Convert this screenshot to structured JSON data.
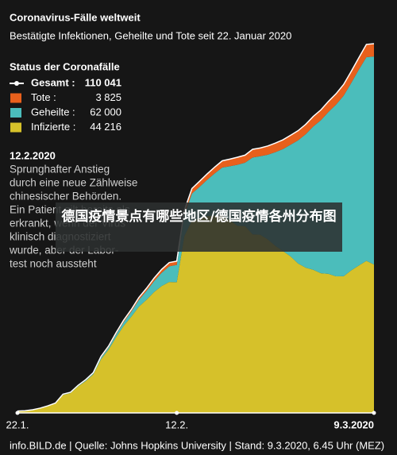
{
  "chart_data": {
    "type": "stacked_area",
    "title": "Coronavirus-Fälle weltweit",
    "subtitle": "Bestätigte Infektionen, Geheilte und Tote seit 22. Januar 2020",
    "legend_title": "Status der Coronafälle",
    "annotation_title": "12.2.2020",
    "annotation_lines": [
      "Sprunghafter Anstieg",
      "durch eine neue Zählweise",
      "chinesischer Behörden.",
      "Ein Patient gilt bereits als",
      "erkrankt, wenn der Virus",
      "klinisch diagnostiziert",
      "wurde, aber der Labor-",
      "test noch aussteht"
    ],
    "overlay": "德国疫情景点有哪些地区/德国疫情各州分布图",
    "footer": "info.BILD.de | Quelle: Johns Hopkins University | Stand: 9.3.2020, 6.45 Uhr (MEZ)",
    "categories": [
      "22.1.",
      null,
      null,
      null,
      null,
      null,
      null,
      null,
      null,
      null,
      null,
      null,
      null,
      null,
      null,
      null,
      null,
      null,
      null,
      null,
      null,
      "12.2.",
      null,
      null,
      null,
      null,
      null,
      null,
      null,
      null,
      null,
      null,
      null,
      null,
      null,
      null,
      null,
      null,
      null,
      null,
      null,
      null,
      null,
      null,
      null,
      null,
      null,
      "9.3.2020"
    ],
    "ylim": [
      0,
      110041
    ],
    "series": [
      {
        "name": "Gesamt",
        "legend_label": "Gesamt :",
        "legend_value": "110 041",
        "color": "#ffffff",
        "kind": "line",
        "values": [
          555,
          654,
          941,
          1434,
          2118,
          2927,
          5578,
          6166,
          8234,
          9927,
          12038,
          16787,
          19881,
          23892,
          27635,
          30794,
          34391,
          37120,
          40150,
          42762,
          44802,
          45221,
          60368,
          66885,
          69030,
          71224,
          73258,
          75136,
          75639,
          76197,
          76819,
          78572,
          78958,
          79561,
          80406,
          81388,
          82746,
          84112,
          86011,
          88369,
          90306,
          92840,
          95120,
          97886,
          101801,
          105847,
          109821,
          110041
        ]
      },
      {
        "name": "Tote",
        "legend_label": "Tote       :",
        "legend_value": "3 825",
        "color": "#e8601c",
        "kind": "area",
        "values": [
          17,
          18,
          26,
          42,
          56,
          82,
          131,
          133,
          171,
          213,
          259,
          362,
          426,
          492,
          564,
          634,
          719,
          806,
          906,
          1013,
          1113,
          1118,
          1371,
          1523,
          1666,
          1770,
          1868,
          2007,
          2122,
          2247,
          2251,
          2458,
          2469,
          2629,
          2708,
          2770,
          2814,
          2872,
          2941,
          2996,
          3085,
          3160,
          3254,
          3348,
          3460,
          3558,
          3802,
          3825
        ]
      },
      {
        "name": "Geheilte",
        "legend_label": "Geheilte :",
        "legend_value": "62 000",
        "color": "#4bbdbb",
        "kind": "area",
        "values": [
          28,
          30,
          36,
          39,
          52,
          61,
          107,
          126,
          143,
          222,
          284,
          472,
          623,
          852,
          1124,
          1487,
          2011,
          2616,
          3244,
          3946,
          4683,
          5150,
          6295,
          8058,
          9395,
          10865,
          12583,
          14352,
          16121,
          18177,
          18890,
          22886,
          23394,
          25227,
          27905,
          30384,
          33277,
          36711,
          39782,
          42716,
          45602,
          48228,
          51170,
          53796,
          55865,
          58359,
          60694,
          62000
        ]
      },
      {
        "name": "Infizierte",
        "legend_label": "Infizierte :",
        "legend_value": "44 216",
        "color": "#d6c12a",
        "kind": "area",
        "values": [
          510,
          606,
          879,
          1353,
          2010,
          2784,
          5340,
          5907,
          7920,
          9492,
          11495,
          15953,
          18832,
          22548,
          25947,
          28673,
          31661,
          33698,
          36000,
          37803,
          39006,
          38953,
          52702,
          57304,
          57969,
          58589,
          58807,
          58777,
          57396,
          55773,
          55678,
          53228,
          53095,
          51705,
          49793,
          48234,
          46655,
          44529,
          43288,
          42657,
          41619,
          41452,
          40696,
          40742,
          42476,
          43930,
          45325,
          44216
        ]
      }
    ]
  }
}
